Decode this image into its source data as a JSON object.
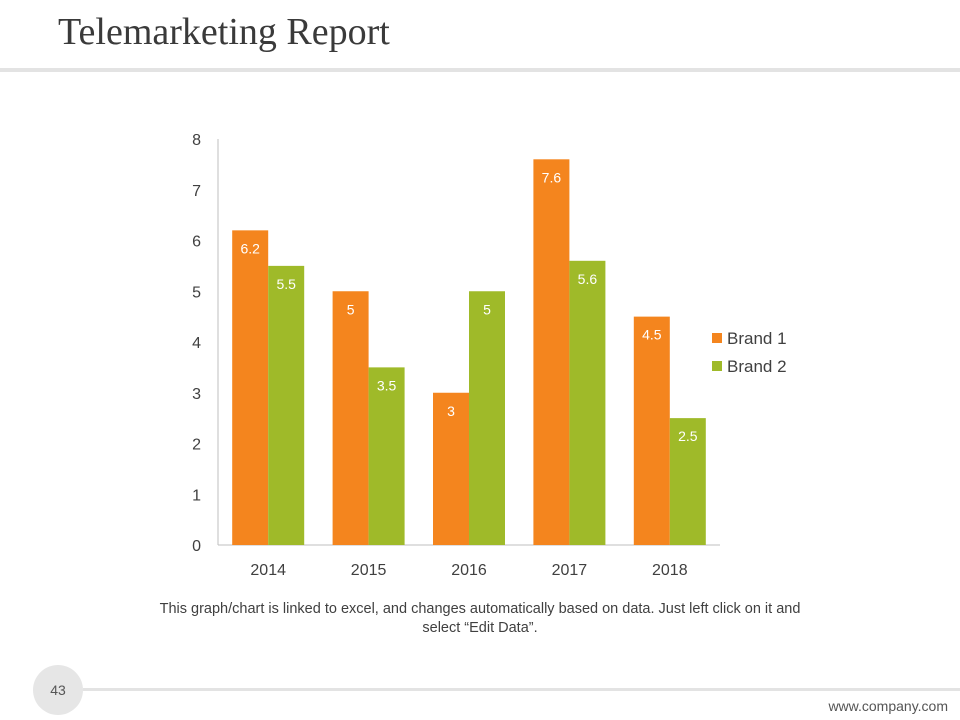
{
  "slide": {
    "title": "Telemarketing Report",
    "caption": "This graph/chart is linked to excel, and changes automatically based on data. Just left click on it and select “Edit Data”.",
    "page_number": "43",
    "footer_url": "www.company.com"
  },
  "colors": {
    "brand1": "#F4851E",
    "brand2": "#9FBA29",
    "axis": "#BFBFBF",
    "tick_text": "#404040",
    "bar_label": "#FFFFFF"
  },
  "chart_data": {
    "type": "bar",
    "title": "",
    "xlabel": "",
    "ylabel": "",
    "categories": [
      "2014",
      "2015",
      "2016",
      "2017",
      "2018"
    ],
    "series": [
      {
        "name": "Brand 1",
        "values": [
          6.2,
          5,
          3,
          7.6,
          4.5
        ],
        "labels": [
          "6.2",
          "5",
          "3",
          "7.6",
          "4.5"
        ]
      },
      {
        "name": "Brand 2",
        "values": [
          5.5,
          3.5,
          5,
          5.6,
          2.5
        ],
        "labels": [
          "5.5",
          "3.5",
          "5",
          "5.6",
          "2.5"
        ]
      }
    ],
    "yticks": [
      "0",
      "1",
      "2",
      "3",
      "4",
      "5",
      "6",
      "7",
      "8"
    ],
    "ylim": [
      0,
      8
    ],
    "grid": false,
    "legend_position": "right"
  }
}
